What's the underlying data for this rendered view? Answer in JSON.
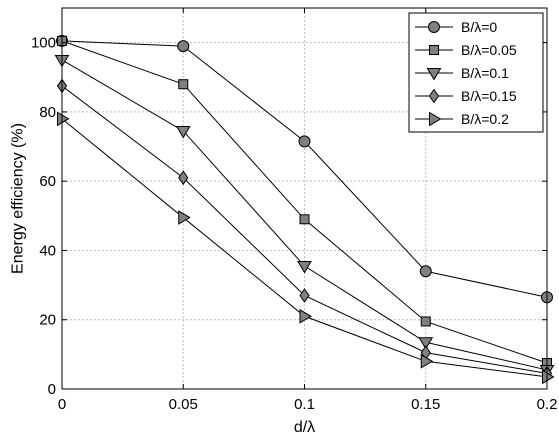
{
  "chart_data": {
    "type": "line",
    "title": "",
    "xlabel": "d/λ",
    "ylabel": "Energy efficiency (%)",
    "x": [
      0,
      0.05,
      0.1,
      0.15,
      0.2
    ],
    "x_tick_labels": [
      "0",
      "0.05",
      "0.1",
      "0.15",
      "0.2"
    ],
    "y_tick_labels": [
      "0",
      "20",
      "40",
      "60",
      "80",
      "100"
    ],
    "y_ticks": [
      0,
      20,
      40,
      60,
      80,
      100
    ],
    "xlim": [
      0,
      0.2
    ],
    "ylim": [
      0,
      110
    ],
    "grid": true,
    "legend_position": "top-right",
    "colors": {
      "line": "#000000",
      "marker_fill": "#808080",
      "grid": "#bfbfbf"
    },
    "series": [
      {
        "name": "B/λ=0",
        "marker": "circle",
        "values": [
          100.5,
          99,
          71.5,
          34,
          26.5
        ]
      },
      {
        "name": "B/λ=0.05",
        "marker": "square",
        "values": [
          100.5,
          88,
          49,
          19.5,
          7.5
        ]
      },
      {
        "name": "B/λ=0.1",
        "marker": "triangle-down",
        "values": [
          95,
          74.5,
          35.5,
          13.5,
          5.5
        ]
      },
      {
        "name": "B/λ=0.15",
        "marker": "diamond",
        "values": [
          87.5,
          61,
          27,
          10.5,
          4.5
        ]
      },
      {
        "name": "B/λ=0.2",
        "marker": "triangle-right",
        "values": [
          78,
          49.5,
          21,
          8,
          3.5
        ]
      }
    ]
  }
}
